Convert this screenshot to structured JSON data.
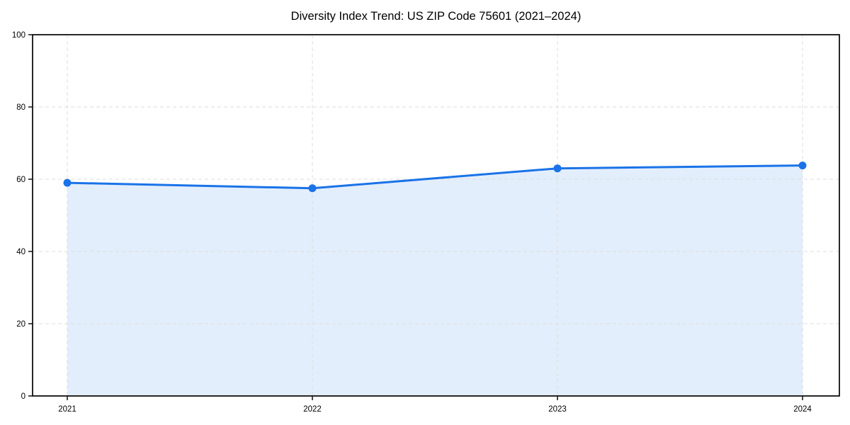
{
  "chart_data": {
    "type": "line",
    "title": "Diversity Index Trend: US ZIP Code 75601 (2021–2024)",
    "x": [
      2021,
      2022,
      2023,
      2024
    ],
    "x_tick_labels": [
      "2021",
      "2022",
      "2023",
      "2024"
    ],
    "series": [
      {
        "name": "Diversity Index",
        "values": [
          59,
          57.5,
          63,
          63.8
        ]
      }
    ],
    "y_ticks": [
      0,
      20,
      40,
      60,
      80,
      100
    ],
    "ylim": [
      0,
      100
    ],
    "xlabel": "",
    "ylabel": "",
    "legend_position": "none",
    "grid": "dashed-both-axes",
    "area_fill_to_zero": true,
    "marker": "circle",
    "colors": {
      "line": "#1a73e8",
      "marker": "#1a73e8",
      "fill": "rgba(26,115,232,0.12)",
      "grid": "#dedede",
      "axis": "#111111",
      "text": "#000000",
      "background": "#ffffff"
    }
  }
}
